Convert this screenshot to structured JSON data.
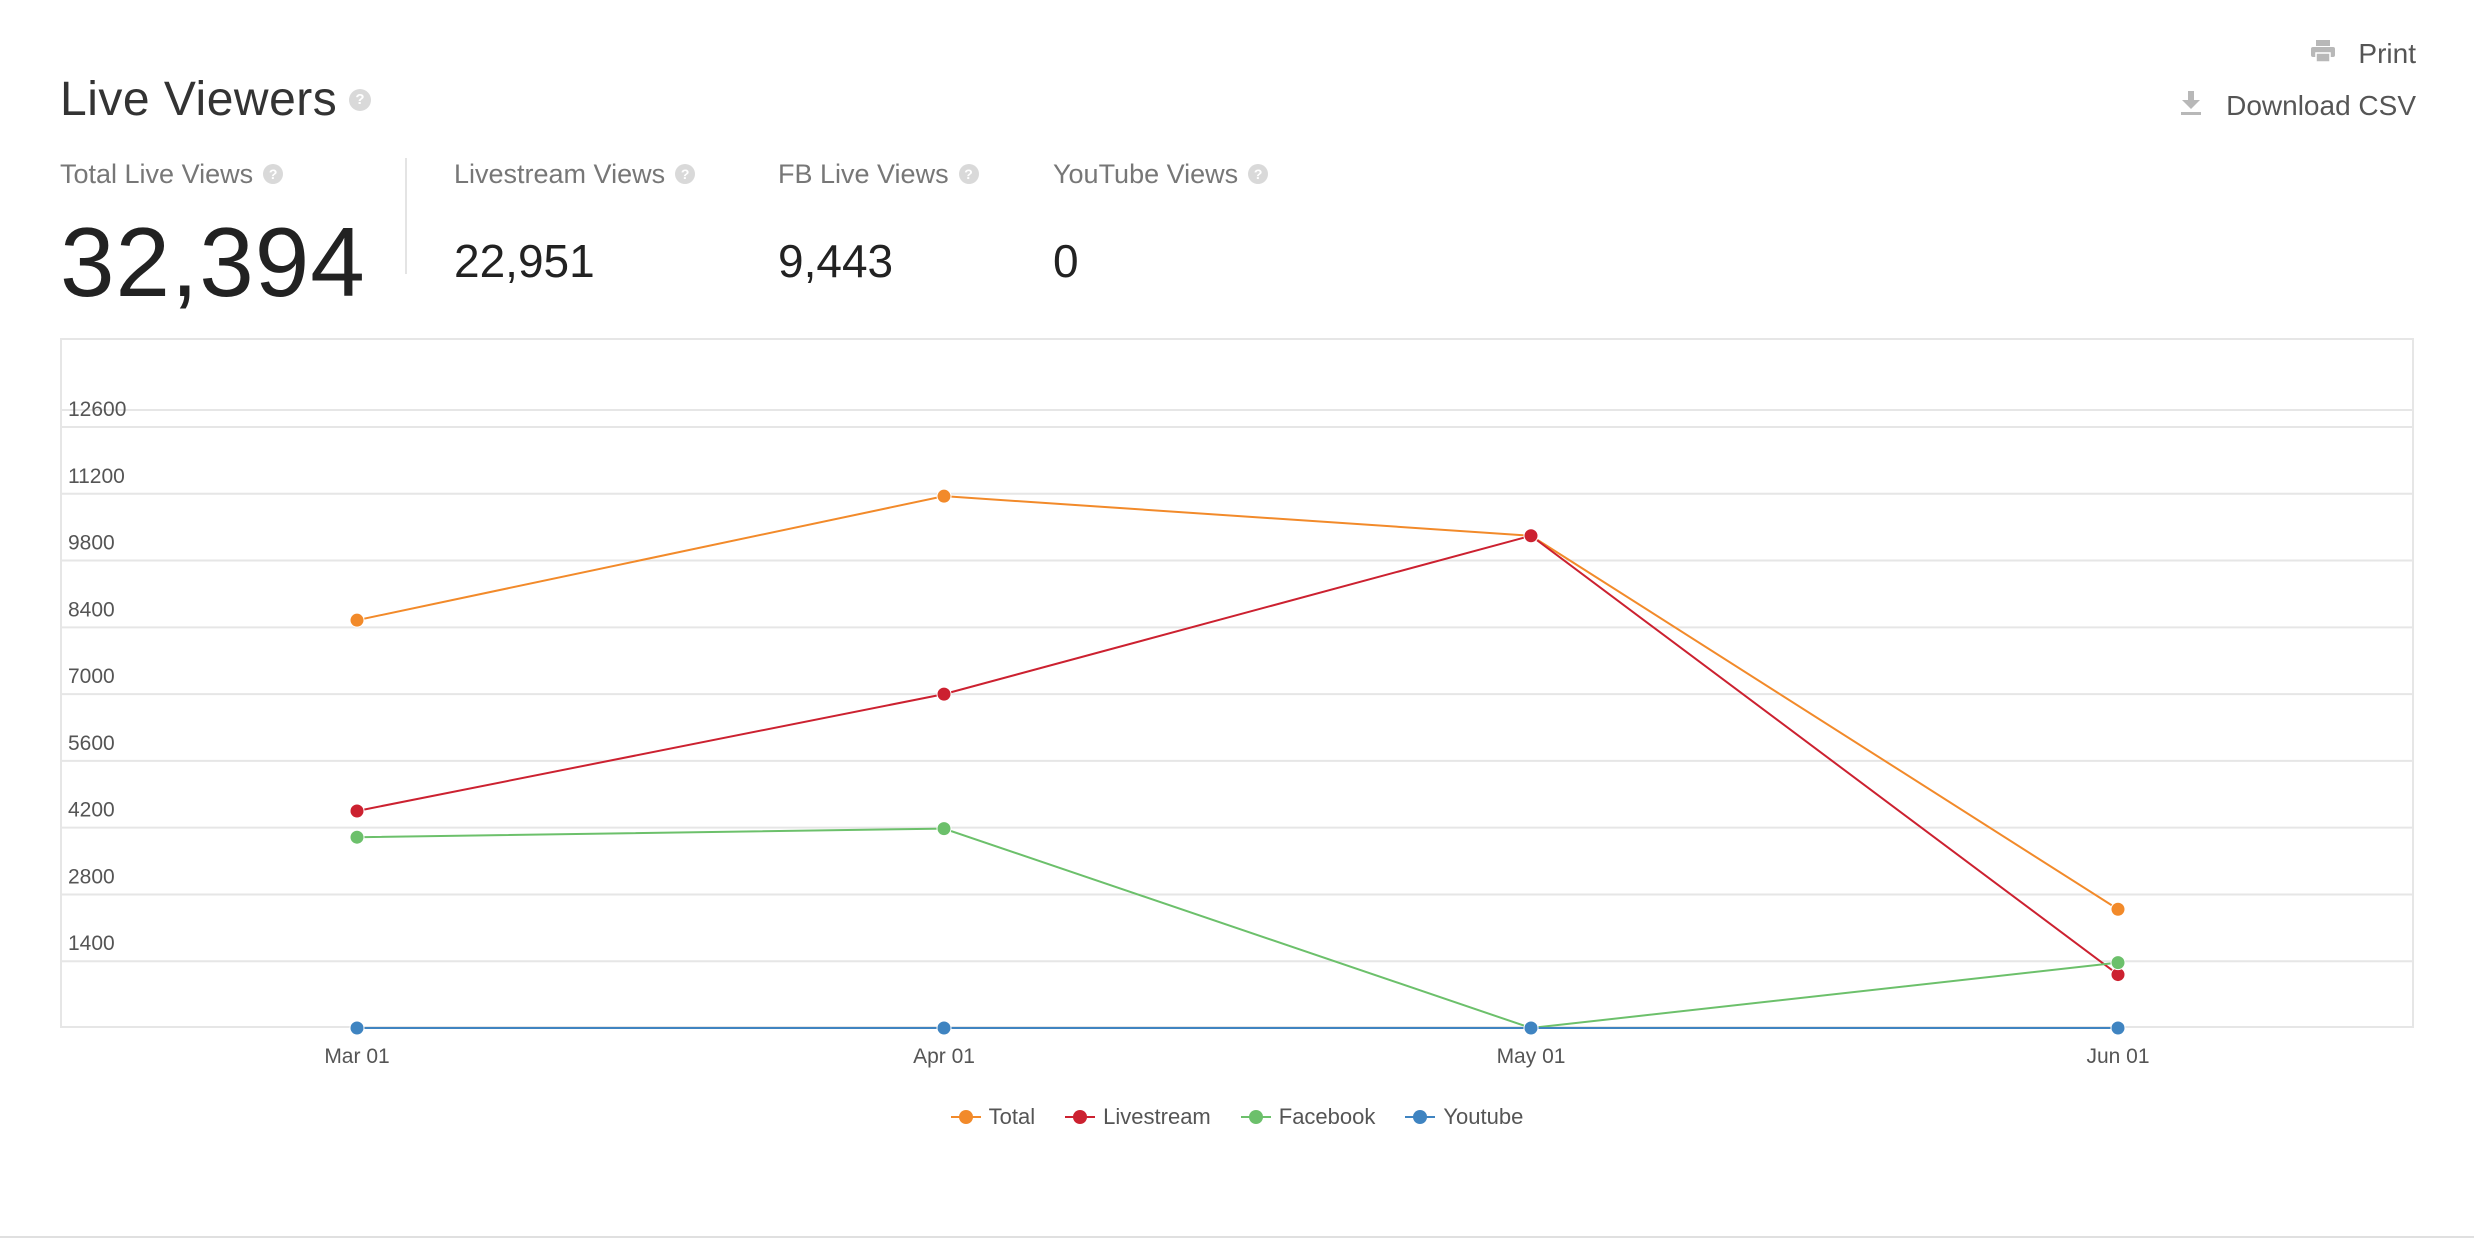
{
  "header": {
    "title": "Live Viewers",
    "help_glyph": "?",
    "actions": {
      "print_label": "Print",
      "print_icon": "printer-icon",
      "download_label": "Download CSV",
      "download_icon": "download-icon"
    }
  },
  "stats": {
    "total": {
      "label": "Total Live Views",
      "value": "32,394"
    },
    "livestream": {
      "label": "Livestream Views",
      "value": "22,951"
    },
    "facebook": {
      "label": "FB Live Views",
      "value": "9,443"
    },
    "youtube": {
      "label": "YouTube Views",
      "value": "0"
    }
  },
  "chart_data": {
    "type": "line",
    "title": "",
    "xlabel": "",
    "ylabel": "",
    "categories": [
      "Mar 01",
      "Apr 01",
      "May 01",
      "Jun 01"
    ],
    "ylim": [
      0,
      12600
    ],
    "yticks": [
      1400,
      2800,
      4200,
      5600,
      7000,
      8400,
      9800,
      11200,
      12600
    ],
    "grid": true,
    "legend_position": "bottom",
    "series": [
      {
        "name": "Total",
        "color": "#f28a2a",
        "values": [
          8550,
          11150,
          10320,
          2490
        ]
      },
      {
        "name": "Livestream",
        "color": "#cc2130",
        "values": [
          4550,
          7000,
          10320,
          1120
        ]
      },
      {
        "name": "Facebook",
        "color": "#6cc06b",
        "values": [
          4000,
          4180,
          0,
          1370
        ]
      },
      {
        "name": "Youtube",
        "color": "#3f84c1",
        "values": [
          0,
          0,
          0,
          0
        ]
      }
    ]
  }
}
